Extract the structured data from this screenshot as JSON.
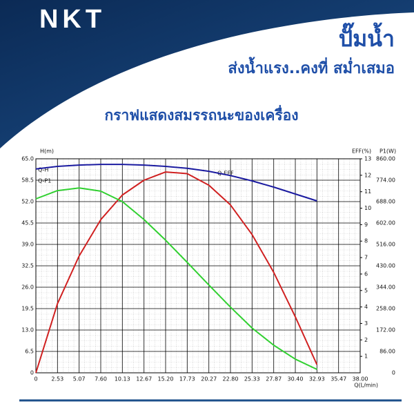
{
  "header": {
    "logo": "NKT",
    "title": "ปั๊มน้ำ",
    "slogan": "ส่งน้ำแรง..คงที่ สม่ำเสมอ"
  },
  "chart_data": {
    "type": "line",
    "title": "กราฟแสดงสมรรถนะของเครื่อง",
    "x_label": "Q(L/min)",
    "y_label": "H(m)",
    "y2_label": "EFF(%)",
    "y3_label": "P1(W)",
    "annotations": [
      "Q-EFF",
      "Q-H",
      "Q-P1"
    ],
    "x": [
      0,
      2.53,
      5.07,
      7.6,
      10.13,
      12.67,
      15.2,
      17.73,
      20.27,
      22.8,
      25.33,
      27.87,
      30.4,
      32.93
    ],
    "series": [
      {
        "color": "#1a1aa0",
        "values": [
          61.9,
          62.7,
          63.1,
          63.3,
          63.3,
          63.1,
          62.7,
          62.1,
          61.2,
          59.9,
          58.3,
          56.4,
          54.3,
          52.2
        ]
      },
      {
        "color": "#d02020",
        "axis": "y2",
        "values": [
          0,
          4.2,
          7.1,
          9.3,
          10.8,
          11.7,
          12.2,
          12.1,
          11.4,
          10.2,
          8.4,
          6.1,
          3.4,
          0.5
        ]
      },
      {
        "color": "#30d030",
        "axis": "y3",
        "values": [
          699,
          732,
          743,
          730,
          688,
          616,
          533,
          444,
          353,
          264,
          180,
          111,
          55,
          14
        ]
      }
    ],
    "xlim": [
      0,
      38
    ],
    "xticks": [
      0,
      2.53,
      5.07,
      {
        "value": 7.6,
        "label": "7.60"
      },
      10.13,
      12.67,
      {
        "value": 15.2,
        "label": "15.20"
      },
      17.73,
      20.27,
      {
        "value": 22.8,
        "label": "22.80"
      },
      25.33,
      27.87,
      {
        "value": 30.4,
        "label": "30.40"
      },
      32.93,
      35.47,
      {
        "value": 38,
        "label": "38.00"
      }
    ],
    "ylim": [
      0,
      65
    ],
    "yticks": [
      0,
      6.5,
      {
        "value": 13,
        "label": "13.0"
      },
      19.5,
      {
        "value": 26,
        "label": "26.0"
      },
      32.5,
      {
        "value": 39,
        "label": "39.0"
      },
      45.5,
      {
        "value": 52,
        "label": "52.0"
      },
      58.5,
      {
        "value": 65,
        "label": "65.0"
      }
    ],
    "y2lim": [
      0,
      13
    ],
    "y2ticks": [
      1,
      2,
      3,
      4,
      5,
      6,
      7,
      8,
      9,
      10,
      11,
      12,
      13
    ],
    "y3lim": [
      0,
      860
    ],
    "y3ticks": [
      0,
      {
        "value": 86,
        "label": "86.00"
      },
      {
        "value": 172,
        "label": "172.00"
      },
      {
        "value": 258,
        "label": "258.00"
      },
      {
        "value": 344,
        "label": "344.00"
      },
      {
        "value": 430,
        "label": "430.00"
      },
      {
        "value": 516,
        "label": "516.00"
      },
      {
        "value": 602,
        "label": "602.00"
      },
      {
        "value": 688,
        "label": "688.00"
      },
      {
        "value": 774,
        "label": "774.00"
      },
      {
        "value": 860,
        "label": "860.00"
      }
    ],
    "grid": true
  }
}
